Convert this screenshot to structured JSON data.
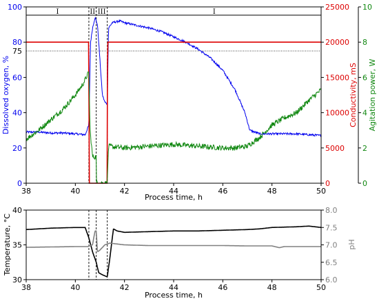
{
  "chart_data": [
    {
      "type": "line",
      "xlabel": "Process time, h",
      "xlim": [
        38,
        50
      ],
      "x_ticks": [
        "38",
        "40",
        "42",
        "44",
        "46",
        "48",
        "50"
      ],
      "y_axes": [
        {
          "label": "Dissolved oxygen, %",
          "color": "#0000ee",
          "lim": [
            0,
            100
          ],
          "ticks": [
            "0",
            "20",
            "40",
            "60",
            "80",
            "100"
          ]
        },
        {
          "label": "Conductivity, mS",
          "color": "#dd0000",
          "lim": [
            0,
            25000
          ],
          "ticks": [
            "0",
            "5000",
            "10000",
            "15000",
            "20000",
            "25000"
          ]
        },
        {
          "label": "Agitation power, W",
          "color": "#118811",
          "lim": [
            0,
            10
          ],
          "ticks": [
            "0",
            "2",
            "4",
            "6",
            "8",
            "10"
          ]
        }
      ],
      "reference_lines": [
        {
          "y": 75,
          "label": "75",
          "style": "dotted"
        }
      ],
      "phase_boundaries_h": [
        40.55,
        40.85,
        41.3
      ],
      "phase_labels": [
        "I",
        "II",
        "III",
        "I"
      ],
      "series": [
        {
          "axis": 0,
          "color": "#0000ee",
          "x": [
            38,
            38.5,
            39,
            39.5,
            40,
            40.4,
            40.55,
            40.62,
            40.7,
            40.8,
            40.9,
            41.0,
            41.1,
            41.2,
            41.3,
            41.35,
            41.5,
            41.8,
            42,
            42.5,
            43,
            43.5,
            44,
            44.5,
            45,
            45.5,
            46,
            46.5,
            46.9,
            47.1,
            47.5,
            48,
            48.5,
            49,
            49.5,
            50
          ],
          "y": [
            29,
            29,
            28.5,
            28.5,
            28,
            27.5,
            33,
            80,
            88,
            94,
            90,
            70,
            50,
            46,
            45,
            88,
            91,
            92,
            91,
            89.5,
            88,
            86,
            83,
            80,
            76,
            71,
            64,
            53,
            40,
            30,
            28,
            28,
            28,
            28,
            27.5,
            27
          ]
        },
        {
          "axis": 1,
          "color": "#dd0000",
          "x": [
            38,
            40.55,
            40.56,
            41.3,
            41.31,
            50
          ],
          "y": [
            20000,
            20000,
            0,
            0,
            20000,
            20000
          ]
        },
        {
          "axis": 2,
          "color": "#118811",
          "x": [
            38,
            38.5,
            39,
            39.5,
            40,
            40.3,
            40.55,
            40.6,
            40.7,
            40.85,
            40.86,
            41.3,
            41.35,
            42,
            43,
            44,
            45,
            46,
            46.5,
            47,
            47.5,
            48,
            48.5,
            49,
            49.5,
            50
          ],
          "y": [
            2.5,
            3.0,
            3.6,
            4.2,
            5.0,
            5.6,
            6.3,
            3.0,
            1.5,
            1.5,
            0,
            0,
            2.1,
            2.0,
            2.1,
            2.2,
            2.1,
            2.0,
            2.0,
            2.1,
            2.6,
            3.3,
            3.7,
            4.0,
            4.7,
            5.3
          ]
        }
      ]
    },
    {
      "type": "line",
      "xlabel": "Process time, h",
      "xlim": [
        38,
        50
      ],
      "x_ticks": [
        "38",
        "40",
        "42",
        "44",
        "46",
        "48",
        "50"
      ],
      "y_axes": [
        {
          "label": "Temperature, °C",
          "color": "#000000",
          "lim": [
            30,
            40
          ],
          "ticks": [
            "30",
            "35",
            "40"
          ]
        },
        {
          "label": "pH",
          "color": "#808080",
          "lim": [
            6.0,
            8.0
          ],
          "ticks": [
            "6.0",
            "6.5",
            "7.0",
            "7.5",
            "8.0"
          ]
        }
      ],
      "phase_boundaries_h": [
        40.55,
        40.85,
        41.3
      ],
      "series": [
        {
          "axis": 0,
          "color": "#000000",
          "x": [
            38,
            39,
            40,
            40.4,
            40.55,
            40.7,
            40.85,
            40.95,
            41.1,
            41.3,
            41.4,
            41.55,
            41.7,
            42,
            43,
            44,
            45,
            46,
            47,
            47.5,
            48,
            49,
            49.5,
            50
          ],
          "y": [
            37.2,
            37.4,
            37.5,
            37.5,
            36.0,
            34.0,
            32.5,
            31.0,
            30.7,
            30.4,
            33.0,
            37.3,
            37.0,
            36.8,
            36.9,
            37.0,
            37.0,
            37.1,
            37.2,
            37.3,
            37.5,
            37.6,
            37.7,
            37.5
          ]
        },
        {
          "axis": 1,
          "color": "#808080",
          "x": [
            38,
            39,
            40,
            40.5,
            40.7,
            40.8,
            40.85,
            40.9,
            41.0,
            41.2,
            41.4,
            42,
            43,
            44,
            45,
            46,
            47,
            48,
            48.3,
            48.5,
            49,
            49.5,
            50
          ],
          "y": [
            6.93,
            6.94,
            6.95,
            6.95,
            7.0,
            7.4,
            7.4,
            6.8,
            6.85,
            7.0,
            7.05,
            7.0,
            6.98,
            6.98,
            6.98,
            6.98,
            6.97,
            6.97,
            6.92,
            6.95,
            6.95,
            6.95,
            6.95
          ]
        }
      ]
    }
  ]
}
